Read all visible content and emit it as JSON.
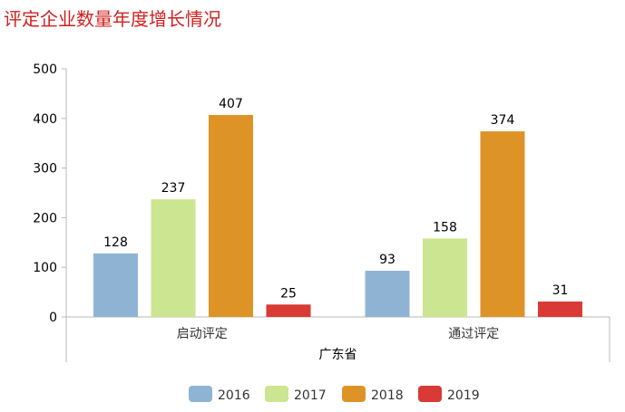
{
  "chart_data": {
    "type": "bar",
    "title": "评定企业数量年度增长情况",
    "title_color": "#d21f1f",
    "xlabel": "广东省",
    "ylabel": "",
    "categories": [
      "启动评定",
      "通过评定"
    ],
    "ylim": [
      0,
      500
    ],
    "yticks": [
      0,
      100,
      200,
      300,
      400,
      500
    ],
    "grid": false,
    "legend": "bottom",
    "series": [
      {
        "name": "2016",
        "values": [
          128,
          93
        ],
        "color": "#8fb4d3"
      },
      {
        "name": "2017",
        "values": [
          237,
          158
        ],
        "color": "#cce590"
      },
      {
        "name": "2018",
        "values": [
          407,
          374
        ],
        "color": "#de9327"
      },
      {
        "name": "2019",
        "values": [
          25,
          31
        ],
        "color": "#d93a35"
      }
    ]
  }
}
